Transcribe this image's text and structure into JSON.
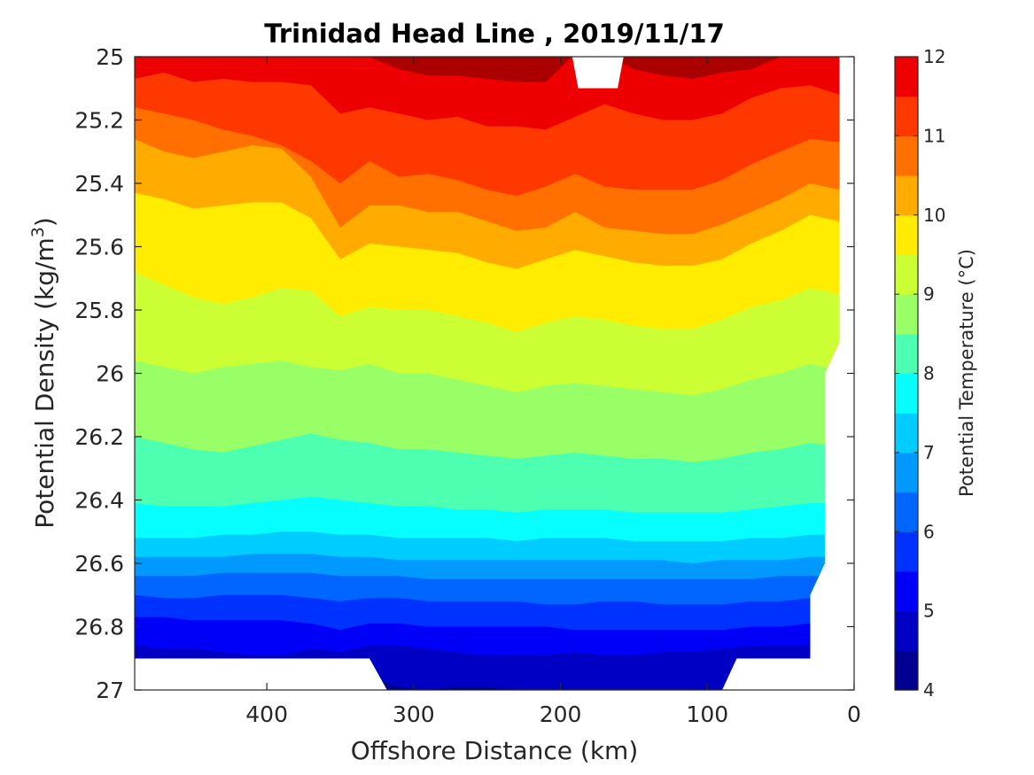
{
  "chart_data": {
    "type": "contour",
    "title": "Trinidad Head Line , 2019/11/17",
    "xlabel": "Offshore Distance (km)",
    "ylabel_main": "Potential Density (kg/m",
    "ylabel_sup": "3",
    "ylabel_close": ")",
    "colorbar_label": "Potential Temperature (°C)",
    "xlim": [
      490,
      0
    ],
    "ylim": [
      25,
      27
    ],
    "x_axis_reversed": true,
    "y_axis_reversed": true,
    "x_ticks": [
      400,
      300,
      200,
      100,
      0
    ],
    "y_ticks": [
      25,
      25.2,
      25.4,
      25.6,
      25.8,
      26,
      26.2,
      26.4,
      26.6,
      26.8,
      27
    ],
    "colorbar_range": [
      4,
      12
    ],
    "colorbar_ticks": [
      4,
      5,
      6,
      7,
      8,
      9,
      10,
      11,
      12
    ],
    "contour_levels": [
      {
        "low": 4.0,
        "high": 4.5,
        "color": "#000090"
      },
      {
        "low": 4.5,
        "high": 5.0,
        "color": "#0000c4"
      },
      {
        "low": 5.0,
        "high": 5.5,
        "color": "#0000f8"
      },
      {
        "low": 5.5,
        "high": 6.0,
        "color": "#0032ff"
      },
      {
        "low": 6.0,
        "high": 6.5,
        "color": "#0066ff"
      },
      {
        "low": 6.5,
        "high": 7.0,
        "color": "#009aff"
      },
      {
        "low": 7.0,
        "high": 7.5,
        "color": "#00cdff"
      },
      {
        "low": 7.5,
        "high": 8.0,
        "color": "#06feff"
      },
      {
        "low": 8.0,
        "high": 8.5,
        "color": "#4dffb0"
      },
      {
        "low": 8.5,
        "high": 9.0,
        "color": "#99ff66"
      },
      {
        "low": 9.0,
        "high": 9.5,
        "color": "#ccff33"
      },
      {
        "low": 9.5,
        "high": 10.0,
        "color": "#ffec00"
      },
      {
        "low": 10.0,
        "high": 10.5,
        "color": "#ffab00"
      },
      {
        "low": 10.5,
        "high": 11.0,
        "color": "#ff7000"
      },
      {
        "low": 11.0,
        "high": 11.5,
        "color": "#ff3800"
      },
      {
        "low": 11.5,
        "high": 12.0,
        "color": "#ee0000"
      },
      {
        "low": 12.0,
        "high": 12.5,
        "color": "#aa0000"
      }
    ],
    "isotherm_depths": {
      "x_km": [
        490,
        470,
        450,
        430,
        410,
        390,
        370,
        350,
        330,
        310,
        290,
        270,
        250,
        230,
        210,
        190,
        170,
        150,
        130,
        110,
        90,
        70,
        50,
        30,
        10
      ],
      "levels": [
        {
          "t": 12.0,
          "sigma": [
            24.99,
            24.99,
            24.99,
            24.99,
            24.99,
            24.99,
            24.99,
            24.99,
            25.0,
            25.04,
            25.06,
            25.06,
            25.07,
            25.08,
            25.08,
            24.99,
            24.99,
            25.04,
            25.06,
            25.07,
            25.05,
            25.04,
            25.0,
            24.99,
            24.99
          ]
        },
        {
          "t": 11.5,
          "sigma": [
            25.07,
            25.05,
            25.08,
            25.07,
            25.08,
            25.08,
            25.09,
            25.18,
            25.16,
            25.18,
            25.2,
            25.19,
            25.22,
            25.22,
            25.23,
            25.19,
            25.15,
            25.18,
            25.2,
            25.2,
            25.18,
            25.13,
            25.1,
            25.09,
            25.12
          ]
        },
        {
          "t": 11.0,
          "sigma": [
            25.16,
            25.18,
            25.2,
            25.23,
            25.25,
            25.28,
            25.33,
            25.4,
            25.33,
            25.38,
            25.37,
            25.39,
            25.42,
            25.44,
            25.41,
            25.37,
            25.41,
            25.42,
            25.42,
            25.42,
            25.39,
            25.34,
            25.3,
            25.26,
            25.27
          ]
        },
        {
          "t": 10.5,
          "sigma": [
            25.26,
            25.3,
            25.32,
            25.3,
            25.28,
            25.29,
            25.38,
            25.54,
            25.47,
            25.47,
            25.49,
            25.49,
            25.52,
            25.55,
            25.54,
            25.49,
            25.54,
            25.55,
            25.56,
            25.56,
            25.53,
            25.49,
            25.45,
            25.4,
            25.42
          ]
        },
        {
          "t": 10.0,
          "sigma": [
            25.43,
            25.45,
            25.48,
            25.47,
            25.46,
            25.46,
            25.51,
            25.64,
            25.59,
            25.6,
            25.61,
            25.62,
            25.65,
            25.67,
            25.64,
            25.61,
            25.63,
            25.65,
            25.66,
            25.66,
            25.64,
            25.59,
            25.55,
            25.5,
            25.52
          ]
        },
        {
          "t": 9.5,
          "sigma": [
            25.68,
            25.72,
            25.76,
            25.78,
            25.76,
            25.73,
            25.74,
            25.82,
            25.79,
            25.8,
            25.8,
            25.82,
            25.84,
            25.87,
            25.84,
            25.82,
            25.83,
            25.85,
            25.86,
            25.86,
            25.83,
            25.79,
            25.77,
            25.73,
            25.75
          ]
        },
        {
          "t": 9.0,
          "sigma": [
            25.96,
            25.98,
            26.0,
            25.98,
            25.97,
            25.96,
            25.98,
            25.99,
            25.97,
            26.0,
            26.0,
            26.02,
            26.04,
            26.06,
            26.04,
            26.03,
            26.04,
            26.05,
            26.06,
            26.07,
            26.05,
            26.02,
            26.0,
            25.97,
            25.99
          ]
        },
        {
          "t": 8.5,
          "sigma": [
            26.2,
            26.22,
            26.24,
            26.25,
            26.23,
            26.21,
            26.19,
            26.21,
            26.22,
            26.24,
            26.24,
            26.25,
            26.26,
            26.27,
            26.26,
            26.25,
            26.26,
            26.27,
            26.27,
            26.28,
            26.27,
            26.25,
            26.24,
            26.22,
            26.23
          ]
        },
        {
          "t": 8.0,
          "sigma": [
            26.41,
            26.42,
            26.42,
            26.42,
            26.41,
            26.4,
            26.39,
            26.4,
            26.41,
            26.42,
            26.42,
            26.43,
            26.43,
            26.44,
            26.43,
            26.43,
            26.43,
            26.44,
            26.44,
            26.44,
            26.44,
            26.43,
            26.42,
            26.41,
            26.41
          ]
        },
        {
          "t": 7.5,
          "sigma": [
            26.52,
            26.52,
            26.52,
            26.51,
            26.51,
            26.5,
            26.5,
            26.51,
            26.51,
            26.52,
            26.52,
            26.52,
            26.52,
            26.53,
            26.52,
            26.52,
            26.52,
            26.53,
            26.53,
            26.53,
            26.53,
            26.52,
            26.52,
            26.51,
            26.51
          ]
        },
        {
          "t": 7.0,
          "sigma": [
            26.58,
            26.58,
            26.58,
            26.58,
            26.57,
            26.57,
            26.57,
            26.58,
            26.58,
            26.59,
            26.59,
            26.59,
            26.59,
            26.59,
            26.59,
            26.59,
            26.59,
            26.59,
            26.59,
            26.6,
            26.59,
            26.59,
            26.59,
            26.58,
            26.58
          ]
        },
        {
          "t": 6.5,
          "sigma": [
            26.64,
            26.64,
            26.64,
            26.63,
            26.63,
            26.63,
            26.63,
            26.64,
            26.64,
            26.64,
            26.65,
            26.65,
            26.65,
            26.65,
            26.65,
            26.65,
            26.65,
            26.65,
            26.65,
            26.65,
            26.65,
            26.65,
            26.64,
            26.64,
            26.64
          ]
        },
        {
          "t": 6.0,
          "sigma": [
            26.7,
            26.71,
            26.71,
            26.7,
            26.7,
            26.7,
            26.71,
            26.72,
            26.71,
            26.71,
            26.72,
            26.72,
            26.72,
            26.72,
            26.73,
            26.73,
            26.72,
            26.72,
            26.73,
            26.73,
            26.73,
            26.72,
            26.72,
            26.71,
            26.71
          ]
        },
        {
          "t": 5.5,
          "sigma": [
            26.77,
            26.77,
            26.78,
            26.78,
            26.78,
            26.78,
            26.79,
            26.81,
            26.79,
            26.79,
            26.8,
            26.8,
            26.8,
            26.8,
            26.8,
            26.81,
            26.81,
            26.81,
            26.81,
            26.81,
            26.81,
            26.8,
            26.8,
            26.79,
            26.79
          ]
        },
        {
          "t": 5.0,
          "sigma": [
            26.86,
            26.87,
            26.87,
            26.88,
            26.89,
            26.89,
            26.87,
            26.88,
            26.86,
            26.86,
            26.87,
            26.88,
            26.89,
            26.89,
            26.89,
            26.88,
            26.89,
            26.89,
            26.88,
            26.88,
            26.87,
            26.86,
            26.86,
            26.86,
            26.86
          ]
        },
        {
          "t": 4.5,
          "sigma": [
            26.9,
            26.9,
            26.9,
            26.9,
            26.9,
            26.9,
            26.9,
            26.92,
            26.96,
            26.99,
            27.0,
            26.99,
            26.99,
            27.0,
            27.0,
            27.0,
            27.0,
            27.0,
            27.0,
            27.0,
            27.0,
            26.9,
            26.9,
            26.9,
            26.9
          ]
        }
      ]
    },
    "data_coverage": {
      "top_gap": {
        "x_from": 192,
        "x_to": 157,
        "sigma_bottom": 25.1
      },
      "nearshore_limit": [
        {
          "x": 10,
          "sigma": 25.0
        },
        {
          "x": 10,
          "sigma": 25.9
        },
        {
          "x": 20,
          "sigma": 26.0
        },
        {
          "x": 20,
          "sigma": 26.6
        },
        {
          "x": 30,
          "sigma": 26.7
        },
        {
          "x": 30,
          "sigma": 26.9
        }
      ],
      "bottom_limit": [
        {
          "x": 490,
          "sigma": 26.9
        },
        {
          "x": 330,
          "sigma": 26.9
        },
        {
          "x": 318,
          "sigma": 27.0
        },
        {
          "x": 90,
          "sigma": 27.0
        },
        {
          "x": 80,
          "sigma": 26.9
        },
        {
          "x": 30,
          "sigma": 26.9
        }
      ]
    }
  }
}
